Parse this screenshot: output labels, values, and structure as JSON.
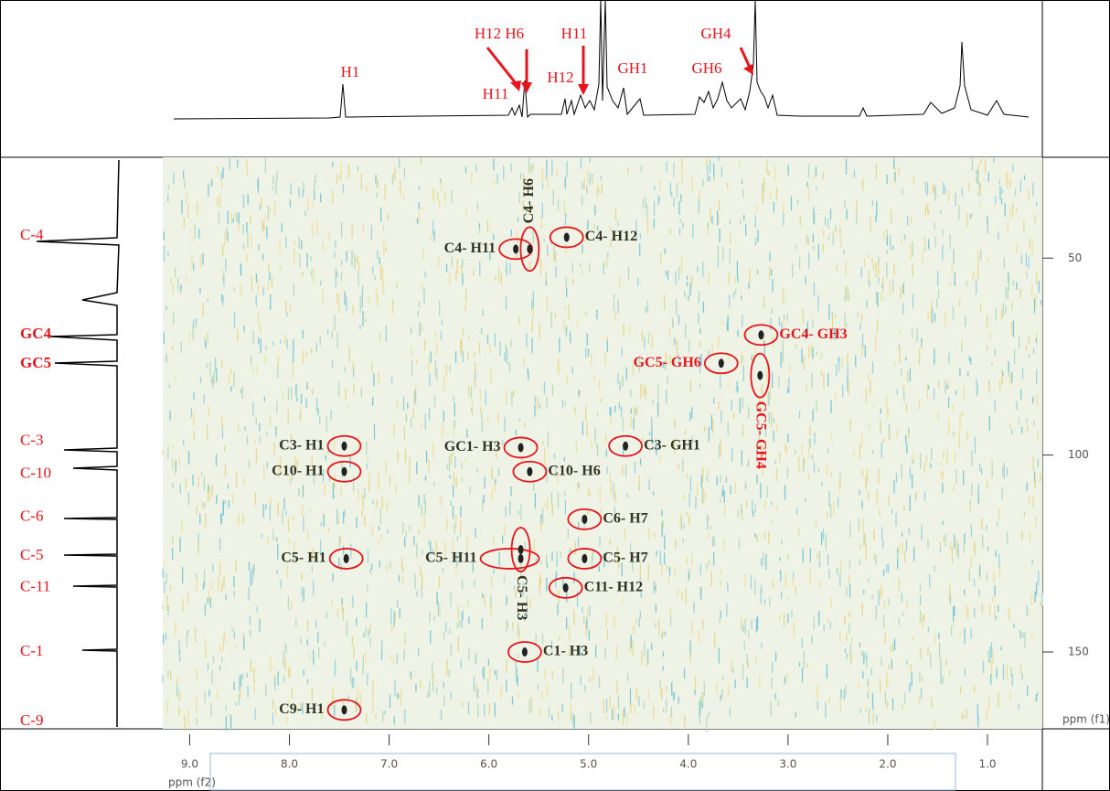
{
  "chart_data": {
    "type": "nmr2d",
    "x_label": "ppm (f2)",
    "y_label": "ppm (f1)",
    "xlim": [
      9.27,
      0.45
    ],
    "ylim": [
      24.4,
      169.5
    ],
    "xticks": [
      {
        "value": 9,
        "label": "9.0"
      },
      {
        "value": 8,
        "label": "8.0"
      },
      {
        "value": 7,
        "label": "7.0"
      },
      {
        "value": 6,
        "label": "6.0"
      },
      {
        "value": 5,
        "label": "5.0"
      },
      {
        "value": 4,
        "label": "4.0"
      },
      {
        "value": 3,
        "label": "3.0"
      },
      {
        "value": 2,
        "label": "2.0"
      },
      {
        "value": 1,
        "label": "1.0"
      }
    ],
    "yticks": [
      50,
      100,
      150
    ],
    "ellipse_color": "#e8141b",
    "peaks": [
      {
        "label": "C4- H11",
        "x": 5.73,
        "y": 47.7,
        "color": "#333322"
      },
      {
        "label": "C4- H6",
        "x": 5.59,
        "y": 47.7,
        "color": "#333322"
      },
      {
        "label": "C4- H12",
        "x": 5.22,
        "y": 44.7,
        "color": "#333322"
      },
      {
        "label": "GC4- GH3",
        "x": 3.27,
        "y": 69.5,
        "color": "#e8141b"
      },
      {
        "label": "GC5- GH6",
        "x": 3.67,
        "y": 76.7,
        "color": "#e8141b"
      },
      {
        "label": "GC5- GH4",
        "x": 3.28,
        "y": 79.8,
        "color": "#e8141b"
      },
      {
        "label": "C3- H1",
        "x": 7.45,
        "y": 97.7,
        "color": "#333322"
      },
      {
        "label": "C10- H1",
        "x": 7.45,
        "y": 104.2,
        "color": "#333322"
      },
      {
        "label": "GC1- H3",
        "x": 5.68,
        "y": 98.1,
        "color": "#333322"
      },
      {
        "label": "C10- H6",
        "x": 5.59,
        "y": 104.2,
        "color": "#333322"
      },
      {
        "label": "C3- GH1",
        "x": 4.63,
        "y": 97.7,
        "color": "#333322"
      },
      {
        "label": "C6- H7",
        "x": 5.04,
        "y": 116.3,
        "color": "#333322"
      },
      {
        "label": "C5- H1",
        "x": 7.43,
        "y": 126.3,
        "color": "#333322"
      },
      {
        "label": "C5- H11",
        "x": 5.68,
        "y": 126.3,
        "color": "#333322"
      },
      {
        "label": "C5- H3",
        "x": 5.68,
        "y": 124.0,
        "color": "#333322"
      },
      {
        "label": "C5- H7",
        "x": 5.04,
        "y": 126.3,
        "color": "#333322"
      },
      {
        "label": "C11- H12",
        "x": 5.23,
        "y": 133.7,
        "color": "#333322"
      },
      {
        "label": "C1- H3",
        "x": 5.64,
        "y": 150.0,
        "color": "#333322"
      },
      {
        "label": "C9- H1",
        "x": 7.45,
        "y": 164.7,
        "color": "#333322"
      }
    ],
    "carbon_labels": [
      {
        "label": "C-4",
        "y": 44.4
      },
      {
        "label": "GC4",
        "y": 69.5
      },
      {
        "label": "GC5",
        "y": 76.9
      },
      {
        "label": "C-3",
        "y": 96.5
      },
      {
        "label": "C-10",
        "y": 104.9
      },
      {
        "label": "C-6",
        "y": 115.8
      },
      {
        "label": "C-5",
        "y": 125.6
      },
      {
        "label": "C-11",
        "y": 133.7
      },
      {
        "label": "C-1",
        "y": 150.0
      },
      {
        "label": "C-9",
        "y": 167.7
      }
    ],
    "proton_labels": [
      "H1",
      "H12 H6",
      "H11",
      "H11",
      "H12",
      "GH1",
      "GH6",
      "GH4"
    ]
  }
}
